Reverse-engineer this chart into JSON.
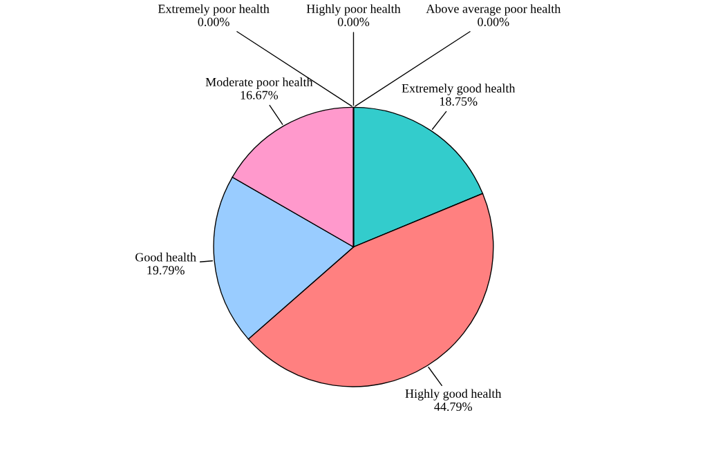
{
  "chart_data": {
    "type": "pie",
    "categories": [
      "Extremely good health",
      "Highly good health",
      "Good health",
      "Moderate poor health",
      "Extremely poor health",
      "Highly poor health",
      "Above average poor health"
    ],
    "values": [
      18.75,
      44.79,
      19.79,
      16.67,
      0,
      0,
      0
    ],
    "value_labels": [
      "18.75%",
      "44.79%",
      "19.79%",
      "16.67%",
      "0.00%",
      "0.00%",
      "0.00%"
    ],
    "colors": [
      "#33cccc",
      "#ff8080",
      "#99ccff",
      "#ff99cc",
      "#993366",
      "#ffffcc",
      "#ccffff"
    ],
    "legend": false
  }
}
